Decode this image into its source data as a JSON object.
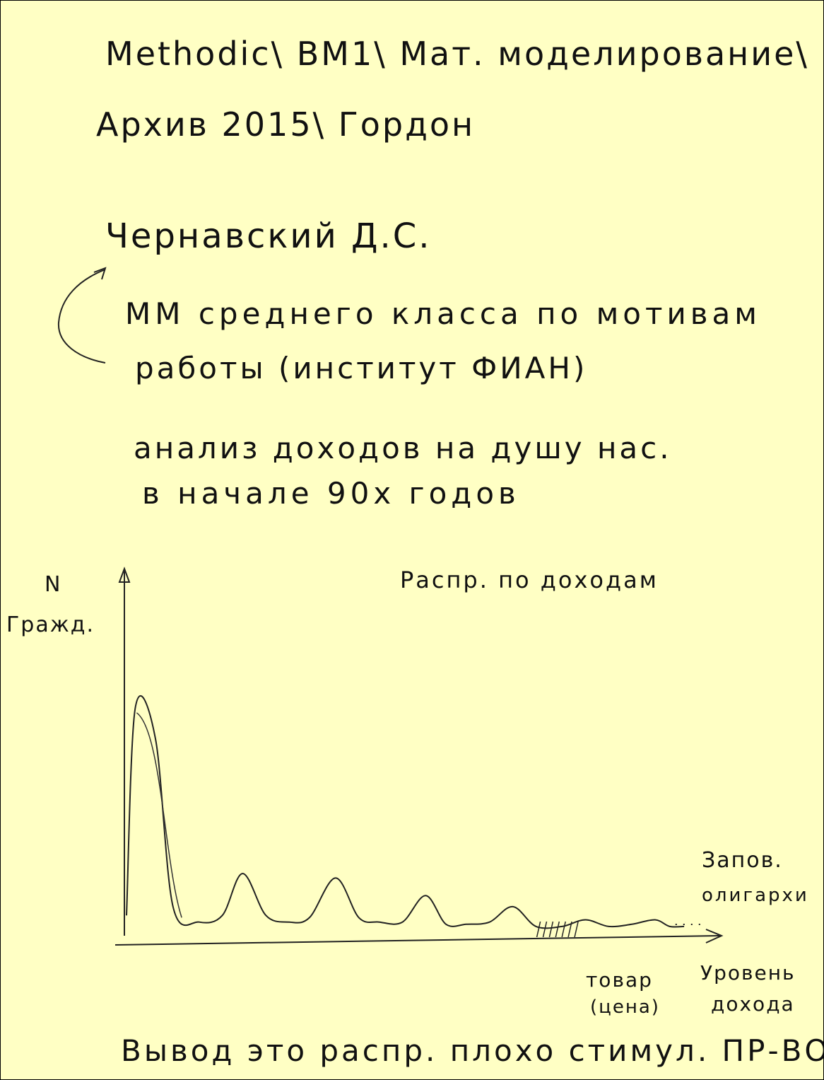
{
  "notes": {
    "path_line1": "Methodic\\ BM1\\ Мат. моделирование\\",
    "path_line2": "Архив 2015\\ Гордон",
    "author": "Чернавский Д.С.",
    "topic_line1": "ММ среднего класса по мотивам",
    "topic_line2": "работы (институт ФИАН)",
    "analysis_line1": "анализ доходов на душу нас.",
    "analysis_line2": "в начале 90х годов",
    "conclusion": "Вывод это распр. плохо стимул. ПР-ВО"
  },
  "chart_data": {
    "type": "line",
    "title": "Распр. по доходам",
    "ylabel_symbol": "N",
    "ylabel": "Гражд.",
    "xlabel_line1": "Уровень",
    "xlabel_line2": "дохода",
    "annotations": [
      {
        "text_line1": "товар",
        "text_line2": "(цена)"
      },
      {
        "text_line1": "Запов.",
        "text_line2": "олигархи"
      }
    ],
    "x": [
      0,
      0.3,
      1,
      1.6,
      2.5,
      3.3,
      4,
      4.8,
      5.6,
      6.3,
      7.2,
      8,
      8.7,
      9.5,
      10.3,
      11,
      11.7,
      12.5,
      13.3,
      14.1,
      15,
      15.8,
      16.6,
      17.4,
      18.2,
      18.7,
      19.2
    ],
    "y": [
      0.06,
      1.0,
      0.86,
      0.1,
      0.03,
      0.06,
      0.25,
      0.06,
      0.03,
      0.05,
      0.23,
      0.05,
      0.03,
      0.03,
      0.15,
      0.02,
      0.02,
      0.03,
      0.1,
      0.01,
      0.01,
      0.04,
      0.01,
      0.02,
      0.04,
      0.01,
      0.01
    ],
    "xlim": [
      0,
      20
    ],
    "ylim": [
      0,
      1.05
    ],
    "shaded_region": [
      14.2,
      15.5
    ],
    "dotted_tail": [
      18.9,
      19.8
    ],
    "grid": false,
    "legend": "none"
  }
}
